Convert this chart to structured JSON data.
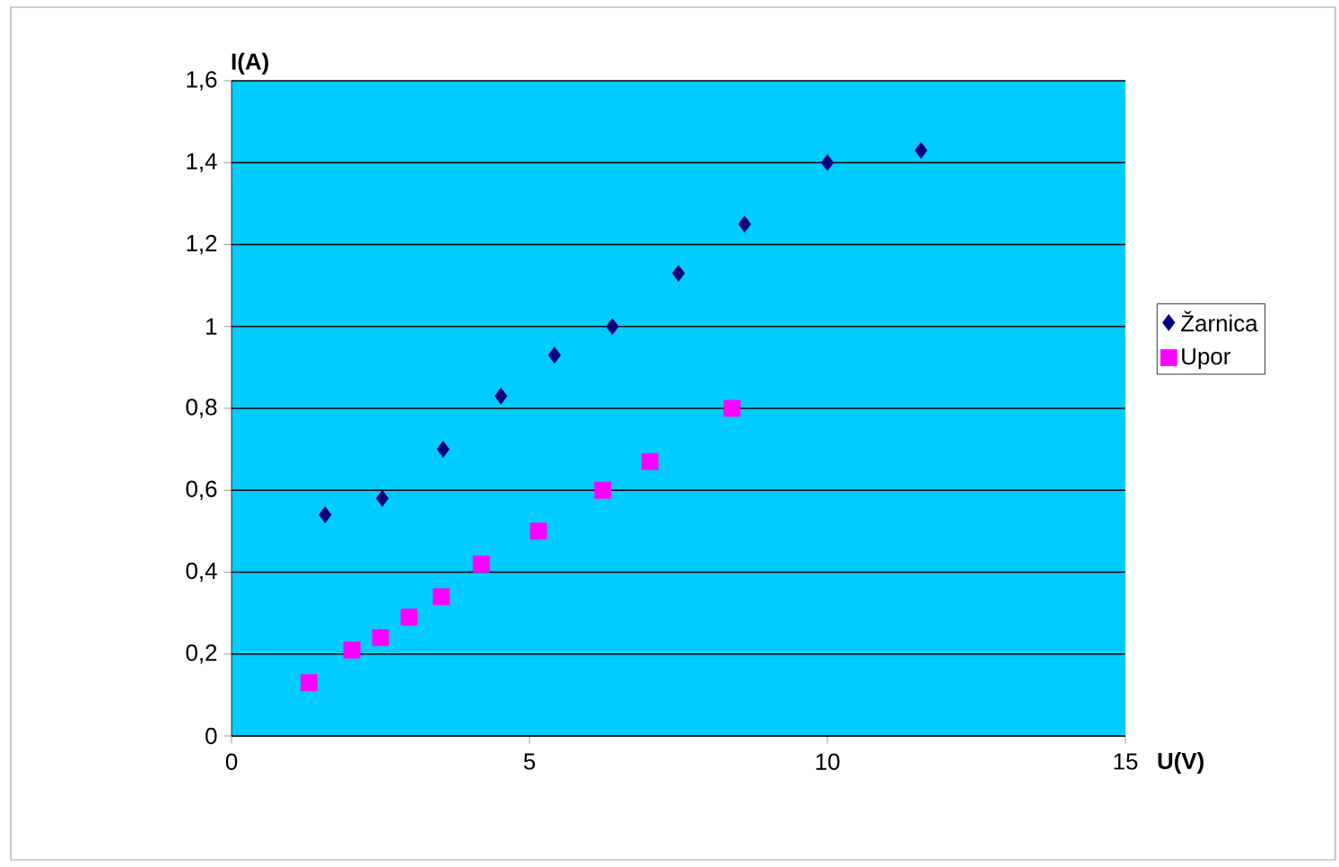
{
  "chart_data": {
    "type": "scatter",
    "xlabel": "U(V)",
    "ylabel": "I(A)",
    "xlim": [
      0,
      15
    ],
    "ylim": [
      0,
      1.6
    ],
    "xticks": [
      0,
      5,
      10,
      15
    ],
    "yticks": [
      0,
      {
        "value": 0.2,
        "label": "0,2"
      },
      {
        "value": 0.4,
        "label": "0,4"
      },
      {
        "value": 0.6,
        "label": "0,6"
      },
      {
        "value": 0.8,
        "label": "0,8"
      },
      1,
      {
        "value": 1.2,
        "label": "1,2"
      },
      {
        "value": 1.4,
        "label": "1,4"
      },
      {
        "value": 1.6,
        "label": "1,6"
      }
    ],
    "grid": "y",
    "legend": "right",
    "series": [
      {
        "name": "Žarnica",
        "color": "#000080",
        "marker": "diamond",
        "x": [
          1.57,
          2.53,
          3.55,
          4.52,
          5.42,
          6.39,
          7.5,
          8.61,
          10.0,
          11.57
        ],
        "values": [
          0.54,
          0.58,
          0.7,
          0.83,
          0.93,
          1.0,
          1.13,
          1.25,
          1.4,
          1.43
        ]
      },
      {
        "name": "Upor",
        "color": "#ff00ff",
        "marker": "square",
        "x": [
          1.3,
          2.02,
          2.5,
          2.98,
          3.52,
          4.19,
          5.15,
          6.23,
          7.02,
          8.4
        ],
        "values": [
          0.13,
          0.21,
          0.24,
          0.29,
          0.34,
          0.42,
          0.5,
          0.6,
          0.67,
          0.8
        ]
      }
    ]
  }
}
